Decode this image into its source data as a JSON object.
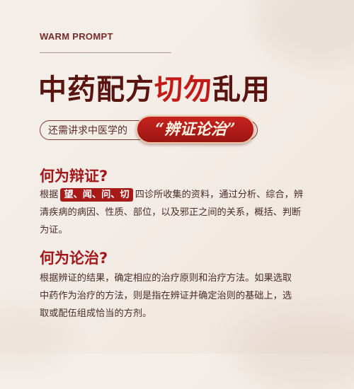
{
  "top_label": "WARM PROMPT",
  "headline": {
    "part1": "中药配方",
    "part2": "切勿",
    "part3": "乱用"
  },
  "subtitle": {
    "prefix": "还需讲求中医学的",
    "badge": "“辨证论治”"
  },
  "section1": {
    "title": "何为辩证?",
    "line1_pre": "根据",
    "highlight": "望、闻、问、切",
    "line1_post": "四诊所收集的资料，通过分析、综合，辨",
    "line2": "清疾病的病因、性质、部位，以及邪正之间的关系，概括、判断",
    "line3": "为证。"
  },
  "section2": {
    "title": "何为论治?",
    "line1": "根据辨证的结果，确定相应的治疗原则和治疗方法。如果选取",
    "line2": "中药作为治疗的方法，则是指在辨证并确定治则的基础上，选",
    "line3": "取或配伍组成恰当的方剂。"
  },
  "colors": {
    "accent": "#a3171a",
    "dark": "#5a1410",
    "background": "#f4ede7"
  }
}
